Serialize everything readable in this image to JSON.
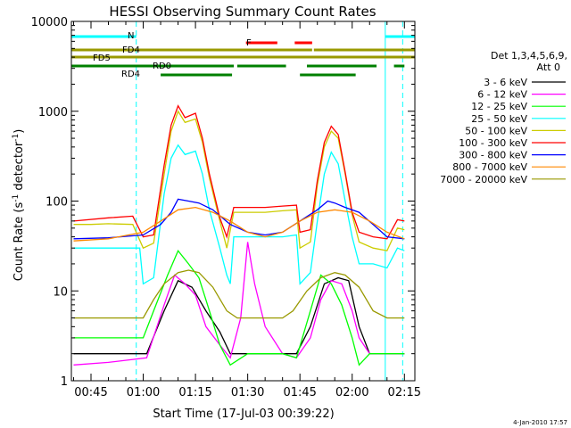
{
  "chart_data": {
    "type": "line",
    "title": "HESSI Observing Summary Count Rates",
    "xlabel": "Start Time (17-Jul-03 00:39:22)",
    "ylabel": "Count Rate (s⁻¹ detector⁻¹)",
    "ylabel_parts": {
      "main": "Count Rate (s",
      "sup1": "-1",
      "mid": " detector",
      "sup2": "-1",
      "end": ")"
    },
    "timestamp": "4-Jan-2010 17:57",
    "xlim": [
      "00:39:22",
      "02:18:00"
    ],
    "ylim": [
      1,
      10000
    ],
    "y_scale": "log",
    "x_ticks": [
      "00:45",
      "01:00",
      "01:15",
      "01:30",
      "01:45",
      "02:00",
      "02:15"
    ],
    "y_ticks": [
      "1",
      "10",
      "100",
      "1000",
      "10000"
    ],
    "legend_header": [
      "Det 1,3,4,5,6,9,",
      "Att 0"
    ],
    "series": [
      {
        "name": "3 - 6 keV",
        "color": "#000000",
        "points": [
          [
            "00:40",
            2
          ],
          [
            "01:01",
            2
          ],
          [
            "01:06",
            6
          ],
          [
            "01:10",
            13
          ],
          [
            "01:14",
            11
          ],
          [
            "01:18",
            6
          ],
          [
            "01:22",
            3.5
          ],
          [
            "01:25",
            2
          ],
          [
            "01:30",
            2
          ],
          [
            "01:35",
            2
          ],
          [
            "01:44",
            2
          ],
          [
            "01:48",
            4
          ],
          [
            "01:52",
            12
          ],
          [
            "01:56",
            14
          ],
          [
            "01:59",
            13
          ],
          [
            "02:02",
            4
          ],
          [
            "02:05",
            2
          ],
          [
            "02:09",
            2
          ],
          [
            "02:15",
            2
          ]
        ]
      },
      {
        "name": "6 - 12 keV",
        "color": "#ff00ff",
        "points": [
          [
            "00:40",
            1.5
          ],
          [
            "00:50",
            1.6
          ],
          [
            "01:01",
            1.8
          ],
          [
            "01:06",
            7
          ],
          [
            "01:09",
            15
          ],
          [
            "01:12",
            12
          ],
          [
            "01:15",
            9
          ],
          [
            "01:18",
            4
          ],
          [
            "01:22",
            2.5
          ],
          [
            "01:25",
            1.8
          ],
          [
            "01:28",
            5
          ],
          [
            "01:30",
            35
          ],
          [
            "01:32",
            12
          ],
          [
            "01:35",
            4
          ],
          [
            "01:40",
            2
          ],
          [
            "01:44",
            1.8
          ],
          [
            "01:48",
            3
          ],
          [
            "01:51",
            8
          ],
          [
            "01:54",
            13
          ],
          [
            "01:57",
            12
          ],
          [
            "02:00",
            6
          ],
          [
            "02:02",
            3
          ],
          [
            "02:05",
            2
          ],
          [
            "02:10",
            2
          ],
          [
            "02:15",
            2
          ]
        ]
      },
      {
        "name": "12 - 25 keV",
        "color": "#00ff00",
        "points": [
          [
            "00:40",
            3
          ],
          [
            "00:50",
            3
          ],
          [
            "01:00",
            3
          ],
          [
            "01:03",
            6
          ],
          [
            "01:07",
            15
          ],
          [
            "01:10",
            28
          ],
          [
            "01:13",
            20
          ],
          [
            "01:16",
            14
          ],
          [
            "01:19",
            6
          ],
          [
            "01:22",
            2.5
          ],
          [
            "01:25",
            1.5
          ],
          [
            "01:30",
            2
          ],
          [
            "01:35",
            2
          ],
          [
            "01:40",
            2
          ],
          [
            "01:44",
            1.8
          ],
          [
            "01:48",
            6
          ],
          [
            "01:51",
            15
          ],
          [
            "01:54",
            12
          ],
          [
            "01:57",
            7
          ],
          [
            "02:00",
            3
          ],
          [
            "02:02",
            1.5
          ],
          [
            "02:05",
            2
          ],
          [
            "02:10",
            2
          ],
          [
            "02:15",
            2
          ]
        ]
      },
      {
        "name": "25 - 50 keV",
        "color": "#00ffff",
        "points": [
          [
            "00:40",
            30
          ],
          [
            "00:50",
            30
          ],
          [
            "00:57",
            30
          ],
          [
            "00:59",
            30
          ],
          [
            "01:00",
            12
          ],
          [
            "01:03",
            14
          ],
          [
            "01:06",
            120
          ],
          [
            "01:08",
            300
          ],
          [
            "01:10",
            420
          ],
          [
            "01:12",
            330
          ],
          [
            "01:15",
            360
          ],
          [
            "01:17",
            200
          ],
          [
            "01:19",
            80
          ],
          [
            "01:22",
            30
          ],
          [
            "01:24",
            15
          ],
          [
            "01:25",
            12
          ],
          [
            "01:26",
            40
          ],
          [
            "01:30",
            40
          ],
          [
            "01:35",
            40
          ],
          [
            "01:40",
            40
          ],
          [
            "01:44",
            42
          ],
          [
            "01:45",
            12
          ],
          [
            "01:48",
            16
          ],
          [
            "01:50",
            60
          ],
          [
            "01:52",
            200
          ],
          [
            "01:54",
            350
          ],
          [
            "01:56",
            260
          ],
          [
            "01:58",
            100
          ],
          [
            "02:00",
            40
          ],
          [
            "02:02",
            20
          ],
          [
            "02:06",
            20
          ],
          [
            "02:10",
            18
          ],
          [
            "02:13",
            30
          ],
          [
            "02:15",
            28
          ]
        ]
      },
      {
        "name": "50 - 100 keV",
        "color": "#cccc00",
        "points": [
          [
            "00:40",
            55
          ],
          [
            "00:45",
            55
          ],
          [
            "00:50",
            56
          ],
          [
            "00:57",
            55
          ],
          [
            "01:00",
            30
          ],
          [
            "01:03",
            34
          ],
          [
            "01:06",
            200
          ],
          [
            "01:08",
            600
          ],
          [
            "01:10",
            1000
          ],
          [
            "01:12",
            750
          ],
          [
            "01:15",
            820
          ],
          [
            "01:17",
            450
          ],
          [
            "01:19",
            180
          ],
          [
            "01:22",
            60
          ],
          [
            "01:24",
            30
          ],
          [
            "01:26",
            75
          ],
          [
            "01:30",
            75
          ],
          [
            "01:35",
            75
          ],
          [
            "01:40",
            78
          ],
          [
            "01:44",
            80
          ],
          [
            "01:45",
            30
          ],
          [
            "01:48",
            35
          ],
          [
            "01:50",
            150
          ],
          [
            "01:52",
            400
          ],
          [
            "01:54",
            600
          ],
          [
            "01:56",
            500
          ],
          [
            "01:58",
            200
          ],
          [
            "02:00",
            70
          ],
          [
            "02:02",
            35
          ],
          [
            "02:06",
            30
          ],
          [
            "02:10",
            28
          ],
          [
            "02:13",
            50
          ],
          [
            "02:15",
            48
          ]
        ]
      },
      {
        "name": "100 - 300 keV",
        "color": "#ff0000",
        "points": [
          [
            "00:40",
            60
          ],
          [
            "00:50",
            65
          ],
          [
            "00:57",
            68
          ],
          [
            "01:00",
            40
          ],
          [
            "01:03",
            42
          ],
          [
            "01:06",
            250
          ],
          [
            "01:08",
            700
          ],
          [
            "01:10",
            1150
          ],
          [
            "01:12",
            850
          ],
          [
            "01:15",
            950
          ],
          [
            "01:17",
            500
          ],
          [
            "01:19",
            200
          ],
          [
            "01:22",
            65
          ],
          [
            "01:24",
            40
          ],
          [
            "01:26",
            85
          ],
          [
            "01:30",
            85
          ],
          [
            "01:35",
            85
          ],
          [
            "01:40",
            88
          ],
          [
            "01:44",
            90
          ],
          [
            "01:45",
            45
          ],
          [
            "01:48",
            48
          ],
          [
            "01:50",
            170
          ],
          [
            "01:52",
            450
          ],
          [
            "01:54",
            680
          ],
          [
            "01:56",
            550
          ],
          [
            "01:58",
            210
          ],
          [
            "02:00",
            75
          ],
          [
            "02:02",
            45
          ],
          [
            "02:06",
            40
          ],
          [
            "02:10",
            38
          ],
          [
            "02:13",
            62
          ],
          [
            "02:15",
            60
          ]
        ]
      },
      {
        "name": "300 - 800 keV",
        "color": "#0000ff",
        "points": [
          [
            "00:40",
            38
          ],
          [
            "00:50",
            39
          ],
          [
            "01:00",
            42
          ],
          [
            "01:05",
            55
          ],
          [
            "01:08",
            75
          ],
          [
            "01:10",
            105
          ],
          [
            "01:13",
            100
          ],
          [
            "01:16",
            95
          ],
          [
            "01:20",
            80
          ],
          [
            "01:25",
            55
          ],
          [
            "01:30",
            45
          ],
          [
            "01:35",
            42
          ],
          [
            "01:40",
            45
          ],
          [
            "01:45",
            60
          ],
          [
            "01:50",
            80
          ],
          [
            "01:53",
            100
          ],
          [
            "01:55",
            95
          ],
          [
            "01:58",
            85
          ],
          [
            "02:02",
            75
          ],
          [
            "02:06",
            55
          ],
          [
            "02:10",
            40
          ],
          [
            "02:15",
            38
          ]
        ]
      },
      {
        "name": "800 - 7000 keV",
        "color": "#ff8800",
        "points": [
          [
            "00:40",
            36
          ],
          [
            "00:50",
            38
          ],
          [
            "01:00",
            45
          ],
          [
            "01:05",
            60
          ],
          [
            "01:10",
            80
          ],
          [
            "01:15",
            85
          ],
          [
            "01:20",
            75
          ],
          [
            "01:25",
            60
          ],
          [
            "01:30",
            45
          ],
          [
            "01:35",
            40
          ],
          [
            "01:40",
            45
          ],
          [
            "01:45",
            60
          ],
          [
            "01:50",
            75
          ],
          [
            "01:55",
            80
          ],
          [
            "02:00",
            75
          ],
          [
            "02:05",
            60
          ],
          [
            "02:10",
            45
          ],
          [
            "02:15",
            38
          ]
        ]
      },
      {
        "name": "7000 - 20000 keV",
        "color": "#999900",
        "points": [
          [
            "00:40",
            5
          ],
          [
            "00:50",
            5
          ],
          [
            "01:00",
            5
          ],
          [
            "01:03",
            8
          ],
          [
            "01:06",
            12
          ],
          [
            "01:10",
            16
          ],
          [
            "01:13",
            17
          ],
          [
            "01:16",
            16
          ],
          [
            "01:20",
            11
          ],
          [
            "01:24",
            6
          ],
          [
            "01:27",
            5
          ],
          [
            "01:35",
            5
          ],
          [
            "01:40",
            5
          ],
          [
            "01:43",
            6
          ],
          [
            "01:47",
            10
          ],
          [
            "01:51",
            14
          ],
          [
            "01:55",
            16
          ],
          [
            "01:58",
            15
          ],
          [
            "02:02",
            11
          ],
          [
            "02:06",
            6
          ],
          [
            "02:10",
            5
          ],
          [
            "02:15",
            5
          ]
        ]
      }
    ],
    "flag_annotations": [
      {
        "label": "N",
        "color": "#00ffff",
        "row": "N",
        "segments": [
          [
            "00:39:22",
            "00:58:00"
          ],
          [
            "02:09:30",
            "02:18:00"
          ]
        ]
      },
      {
        "label": "F",
        "color": "#ff0000",
        "row": "F",
        "segments": [
          [
            "01:29:30",
            "01:38:30"
          ],
          [
            "01:43:30",
            "01:48:30"
          ]
        ]
      },
      {
        "label": "FD4",
        "color": "#999900",
        "row": "FD4",
        "segments": [
          [
            "00:39:22",
            "01:48:30"
          ],
          [
            "01:49:00",
            "02:18:00"
          ]
        ]
      },
      {
        "label": "FD5",
        "color": "#999900",
        "row": "FD5",
        "segments": [
          [
            "00:39:22",
            "02:18:00"
          ]
        ]
      },
      {
        "label": "RD0",
        "color": "#008000",
        "row": "RD0",
        "segments": [
          [
            "00:39:22",
            "01:26:00"
          ],
          [
            "01:27:00",
            "01:41:00"
          ],
          [
            "01:47:00",
            "02:07:00"
          ],
          [
            "02:12:00",
            "02:15:00"
          ]
        ]
      },
      {
        "label": "RD4",
        "color": "#008000",
        "row": "RD4",
        "segments": [
          [
            "01:05:00",
            "01:25:30"
          ],
          [
            "01:45:00",
            "02:01:00"
          ]
        ]
      }
    ],
    "vertical_markers": [
      {
        "time": "00:39:22",
        "style": "solid"
      },
      {
        "time": "00:58:00",
        "style": "dashed"
      },
      {
        "time": "02:09:30",
        "style": "solid"
      },
      {
        "time": "02:14:30",
        "style": "dashed"
      }
    ]
  }
}
